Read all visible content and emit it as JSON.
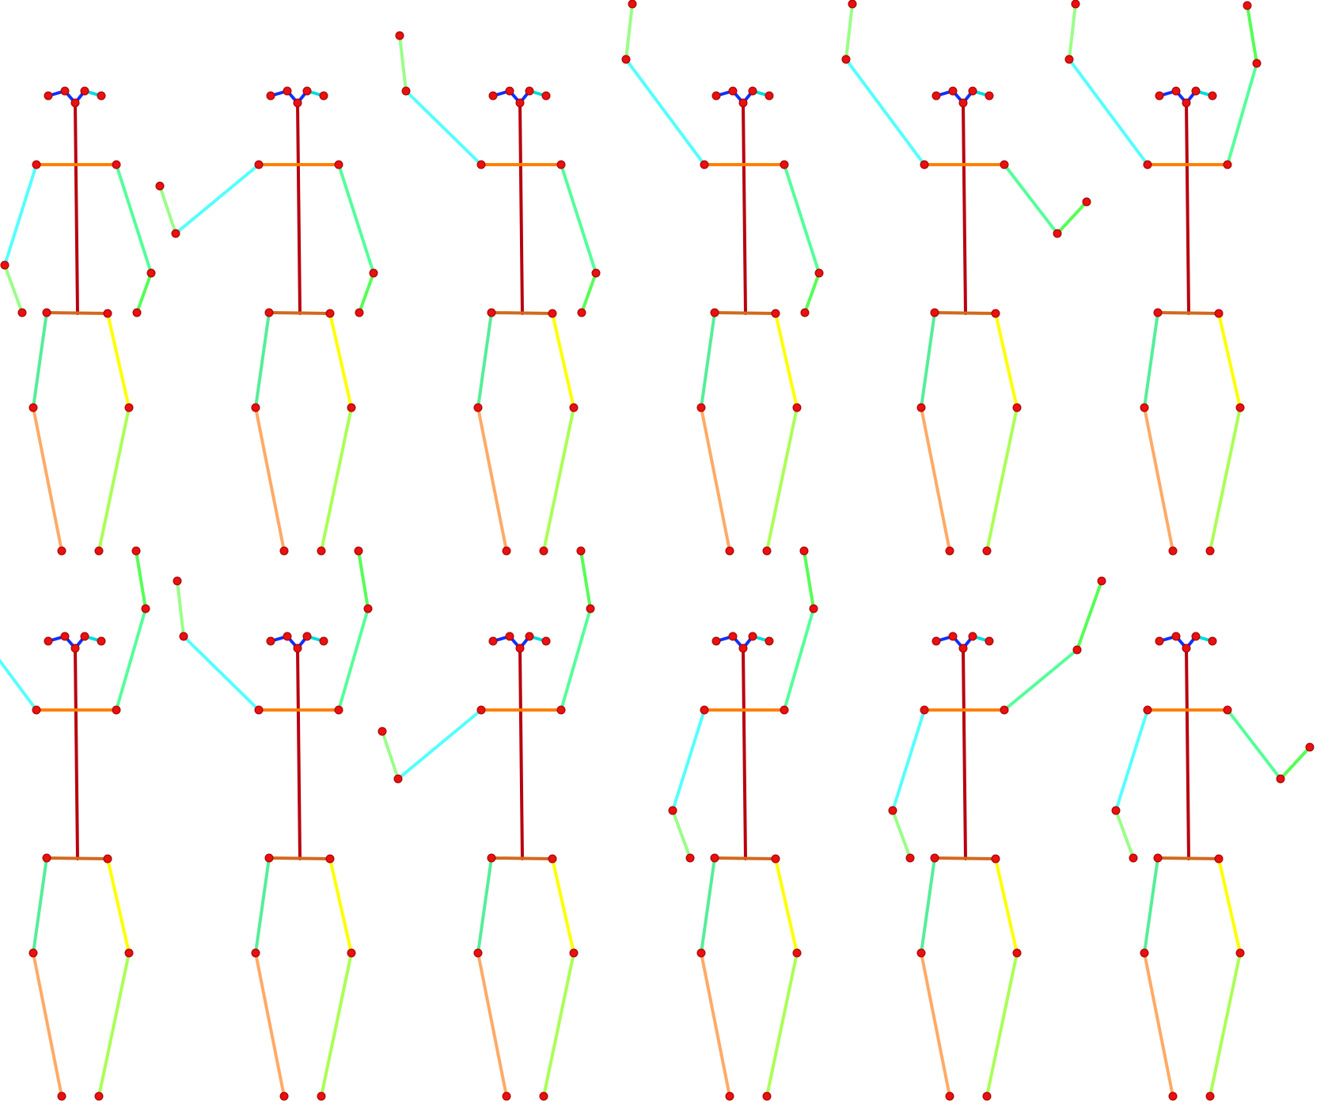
{
  "colors": {
    "background": "#ffffff",
    "joint": "#e81010",
    "joint_outline": "#a00000",
    "spine": "#b8000f",
    "shoulders": "#ff8000",
    "hips": "#d2691e",
    "face": "#1030ff",
    "ears": "#00dddd",
    "upper_arm_right_of_image": "#55ff99",
    "forearm_right_of_image": "#55ff55",
    "upper_arm_left_of_image": "#55ffff",
    "forearm_left_of_image": "#99ff88",
    "thigh_left_of_image": "#55ee99",
    "shin_left_of_image": "#ffaa66",
    "thigh_right_of_image": "#ffff00",
    "shin_right_of_image": "#aaff55"
  },
  "figures": [
    {
      "name": "pose-row1-col1",
      "left_arm": "down",
      "right_arm": "down"
    },
    {
      "name": "pose-row1-col2",
      "left_arm": "out-bent-up",
      "right_arm": "down"
    },
    {
      "name": "pose-row1-col3",
      "left_arm": "up",
      "right_arm": "down"
    },
    {
      "name": "pose-row1-col4",
      "left_arm": "up-high",
      "right_arm": "down"
    },
    {
      "name": "pose-row1-col5",
      "left_arm": "up-high",
      "right_arm": "out-bent-up"
    },
    {
      "name": "pose-row1-col6",
      "left_arm": "up-high",
      "right_arm": "up-high"
    },
    {
      "name": "pose-row2-col1",
      "left_arm": "up-high",
      "right_arm": "up-high"
    },
    {
      "name": "pose-row2-col2",
      "left_arm": "up",
      "right_arm": "up-high"
    },
    {
      "name": "pose-row2-col3",
      "left_arm": "out-bent-up",
      "right_arm": "up-high"
    },
    {
      "name": "pose-row2-col4",
      "left_arm": "down",
      "right_arm": "up-high"
    },
    {
      "name": "pose-row2-col5",
      "left_arm": "down",
      "right_arm": "up"
    },
    {
      "name": "pose-row2-col6",
      "left_arm": "down",
      "right_arm": "out-bent-up"
    }
  ]
}
